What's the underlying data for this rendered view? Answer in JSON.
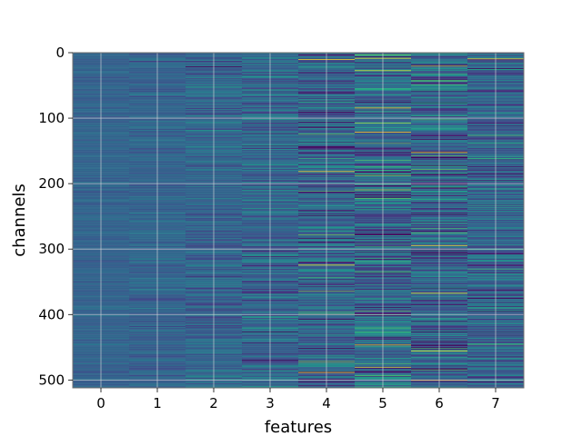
{
  "chart_data": {
    "type": "heatmap",
    "title": "",
    "xlabel": "features",
    "ylabel": "channels",
    "x_categories": [
      "0",
      "1",
      "2",
      "3",
      "4",
      "5",
      "6",
      "7"
    ],
    "y_range": [
      0,
      512
    ],
    "y_ticks": [
      "0",
      "100",
      "200",
      "300",
      "400",
      "500"
    ],
    "n_rows": 512,
    "n_cols": 8,
    "colormap": "viridis",
    "grid": true,
    "column_spread": [
      0.04,
      0.06,
      0.1,
      0.13,
      0.17,
      0.2,
      0.2,
      0.15
    ],
    "bright_lines": [
      {
        "feature": 7,
        "channel": 9
      },
      {
        "feature": 4,
        "channel": 10
      },
      {
        "feature": 5,
        "channel": 8
      },
      {
        "feature": 5,
        "channel": 121
      },
      {
        "feature": 4,
        "channel": 181
      },
      {
        "feature": 6,
        "channel": 152
      },
      {
        "feature": 6,
        "channel": 294
      },
      {
        "feature": 4,
        "channel": 324
      },
      {
        "feature": 6,
        "channel": 367
      },
      {
        "feature": 6,
        "channel": 455
      },
      {
        "feature": 4,
        "channel": 488
      }
    ],
    "colors": {
      "base": "#3b5e8c",
      "grid": "#dcdcdc",
      "frame": "#6e6e6e"
    }
  }
}
